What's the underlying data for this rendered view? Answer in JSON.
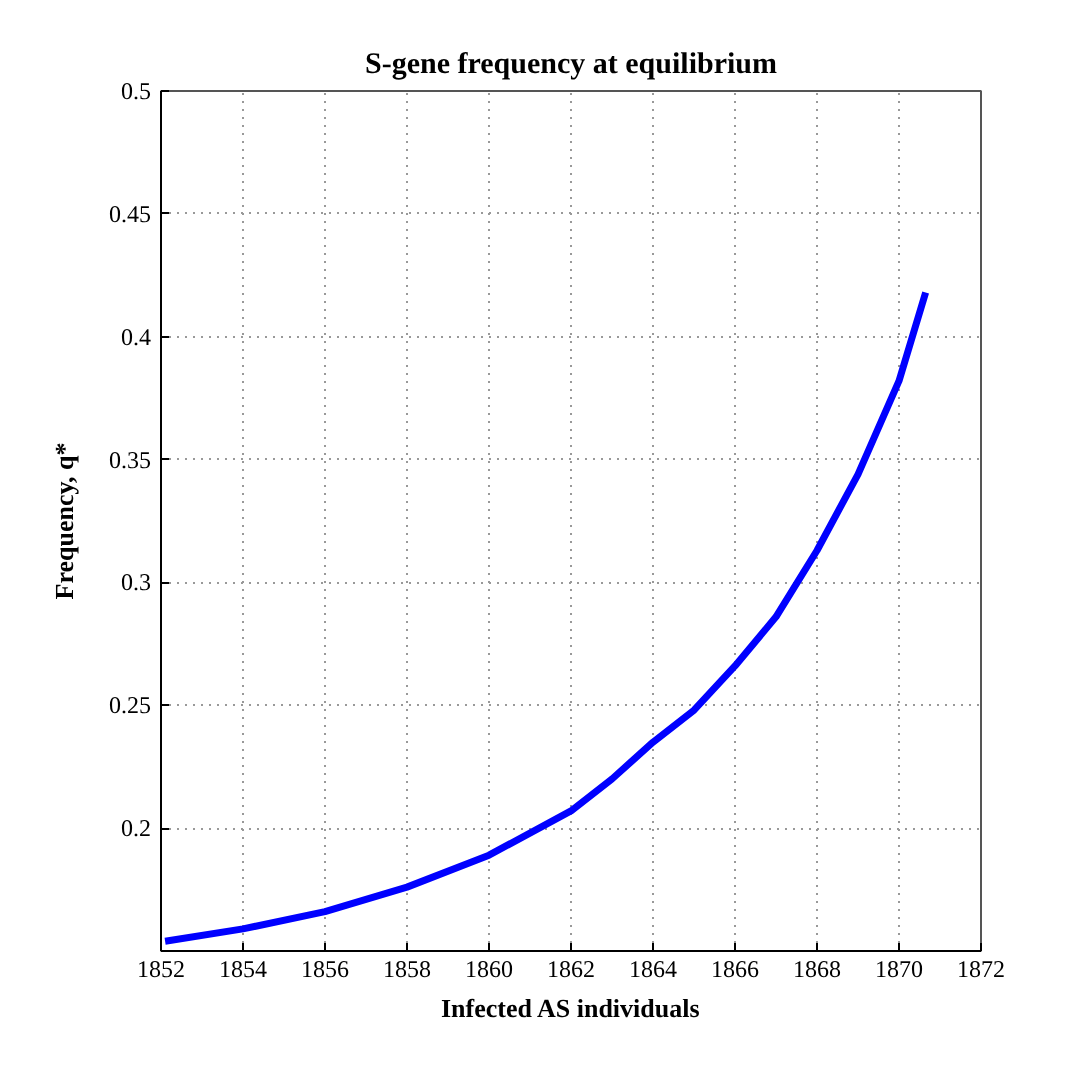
{
  "chart_data": {
    "type": "line",
    "title": "S-gene frequency at equilibrium",
    "xlabel": "Infected AS individuals",
    "ylabel": "Frequency, q*",
    "x": [
      1852.1,
      1854,
      1856,
      1858,
      1860,
      1862,
      1863,
      1864,
      1865,
      1866,
      1867,
      1868,
      1869,
      1870,
      1870.65
    ],
    "series": [
      {
        "color": "#0000ff",
        "values": [
          0.154,
          0.159,
          0.166,
          0.176,
          0.189,
          0.207,
          0.22,
          0.235,
          0.248,
          0.266,
          0.286,
          0.313,
          0.344,
          0.382,
          0.418
        ]
      }
    ],
    "xlim": [
      1852,
      1872
    ],
    "ylim": [
      0.15,
      0.5
    ],
    "xticks": [
      1852,
      1854,
      1856,
      1858,
      1860,
      1862,
      1864,
      1866,
      1868,
      1870,
      1872
    ],
    "yticks": [
      0.2,
      0.25,
      0.3,
      0.35,
      0.4,
      0.45,
      0.5
    ],
    "grid": true,
    "marker": "none",
    "line_style": "solid"
  }
}
